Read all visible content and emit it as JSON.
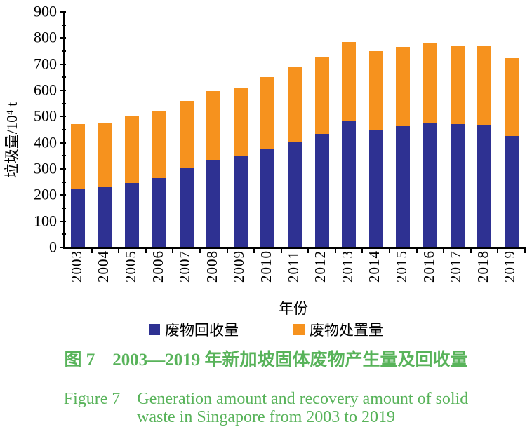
{
  "colors": {
    "recovery_blue": "#2e3192",
    "disposal_orange": "#f6921e",
    "caption_green": "#58b35a",
    "axis_black": "#000000"
  },
  "chart_data": {
    "type": "bar",
    "stacked": true,
    "title": "",
    "xlabel": "年份",
    "ylabel": "垃圾量/10⁴ t",
    "categories": [
      "2003",
      "2004",
      "2005",
      "2006",
      "2007",
      "2008",
      "2009",
      "2010",
      "2011",
      "2012",
      "2013",
      "2014",
      "2015",
      "2016",
      "2017",
      "2018",
      "2019"
    ],
    "series": [
      {
        "name": "废物回收量",
        "color": "#2e3192",
        "values": [
          224,
          231,
          246,
          266,
          303,
          334,
          348,
          376,
          405,
          434,
          483,
          450,
          465,
          477,
          472,
          468,
          425
        ]
      },
      {
        "name": "废物处置量",
        "color": "#f6921e",
        "values": [
          248,
          246,
          256,
          253,
          257,
          263,
          263,
          276,
          285,
          293,
          302,
          301,
          302,
          304,
          298,
          302,
          298
        ]
      }
    ],
    "totals": [
      472,
      477,
      502,
      519,
      560,
      597,
      611,
      652,
      690,
      727,
      785,
      751,
      767,
      781,
      770,
      770,
      723
    ],
    "ylim": [
      0,
      900
    ],
    "y_major_tick": 100,
    "y_minor_tick": 50,
    "grid": false,
    "legend_position": "bottom"
  },
  "captions": {
    "chinese": "图 7　2003—2019 年新加坡固体废物产生量及回收量",
    "english_line1": "Figure 7　Generation amount and recovery amount of solid",
    "english_line2": "waste in Singapore from 2003 to 2019"
  }
}
